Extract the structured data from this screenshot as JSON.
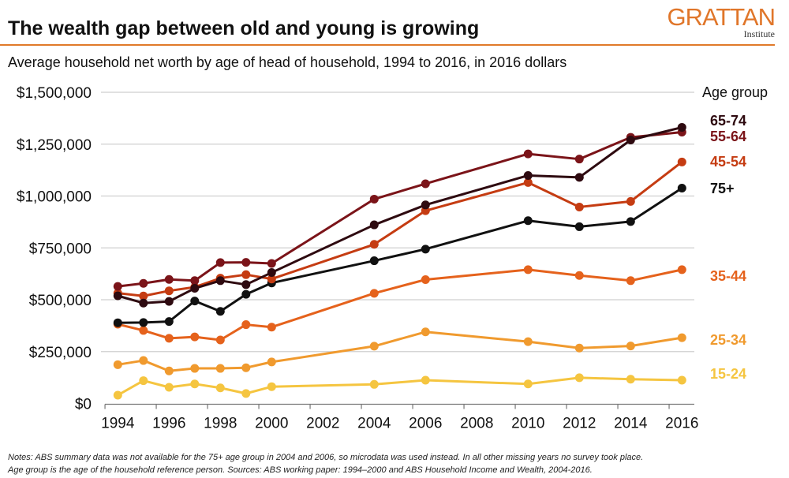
{
  "header": {
    "title": "The wealth gap between old and young is growing",
    "subtitle": "Average household net worth by age of head of household, 1994 to 2016, in 2016 dollars",
    "logo_word": "GRATTAN",
    "logo_sub": "Institute",
    "accent_color": "#e0762a"
  },
  "chart_data": {
    "type": "line",
    "title": "",
    "xlabel": "",
    "ylabel": "",
    "legend_title": "Age group",
    "legend_placement": "right, labels at line ends",
    "grid": "horizontal",
    "ylim": [
      0,
      1500000
    ],
    "yticks": [
      0,
      250000,
      500000,
      750000,
      1000000,
      1250000,
      1500000
    ],
    "ytick_labels": [
      "$0",
      "$250,000",
      "$500,000",
      "$750,000",
      "$1,000,000",
      "$1,250,000",
      "$1,500,000"
    ],
    "xlim": [
      1994,
      2016
    ],
    "xtick_labels": [
      "1994",
      "1996",
      "1998",
      "2000",
      "2002",
      "2004",
      "2006",
      "2008",
      "2010",
      "2012",
      "2014",
      "2016"
    ],
    "x": [
      1994,
      1995,
      1996,
      1997,
      1998,
      1999,
      2000,
      2004,
      2006,
      2010,
      2012,
      2014,
      2016
    ],
    "series": [
      {
        "name": "65-74",
        "color": "#2e0a10",
        "values": [
          519000,
          484000,
          492000,
          555000,
          592000,
          573000,
          631000,
          861000,
          957000,
          1099000,
          1090000,
          1270000,
          1331000
        ]
      },
      {
        "name": "55-64",
        "color": "#7b1419",
        "values": [
          564000,
          579000,
          598000,
          592000,
          679000,
          680000,
          675000,
          985000,
          1059000,
          1203000,
          1178000,
          1283000,
          1308000
        ]
      },
      {
        "name": "45-54",
        "color": "#c53c12",
        "values": [
          532000,
          518000,
          543000,
          561000,
          604000,
          621000,
          600000,
          767000,
          929000,
          1065000,
          947000,
          974000,
          1164000
        ]
      },
      {
        "name": "75+",
        "color": "#111111",
        "values": [
          389000,
          390000,
          395000,
          494000,
          444000,
          526000,
          581000,
          688000,
          744000,
          881000,
          852000,
          877000,
          1038000
        ]
      },
      {
        "name": "35-44",
        "color": "#e5621c",
        "values": [
          382000,
          352000,
          314000,
          321000,
          306000,
          380000,
          368000,
          531000,
          597000,
          645000,
          617000,
          592000,
          645000
        ]
      },
      {
        "name": "25-34",
        "color": "#f09a2e",
        "values": [
          187000,
          207000,
          157000,
          169000,
          169000,
          172000,
          200000,
          276000,
          345000,
          298000,
          267000,
          277000,
          317000
        ]
      },
      {
        "name": "15-24",
        "color": "#f5c540",
        "values": [
          40000,
          110000,
          78000,
          94000,
          75000,
          48000,
          81000,
          92000,
          112000,
          94000,
          124000,
          117000,
          112000
        ]
      }
    ]
  },
  "notes": {
    "line1": "Notes: ABS summary data was not available for the 75+ age group in 2004 and 2006, so microdata was used instead. In all other missing years no survey took place.",
    "line2": "Age group is the age of the household reference person. Sources: ABS working paper: 1994–2000 and ABS Household Income and Wealth, 2004-2016."
  }
}
